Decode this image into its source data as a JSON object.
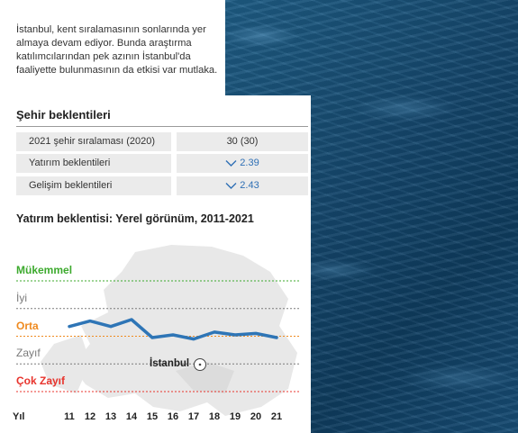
{
  "intro_text": "İstanbul, kent sıralamasının sonlarında yer almaya devam ediyor. Bunda araştırma katılımcılarından pek azının İstanbul'da faaliyette bulunmasının da etkisi var mutlaka.",
  "expectations": {
    "title": "Şehir beklentileri",
    "rows": [
      {
        "label": "2021 şehir sıralaması (2020)",
        "value": "30 (30)",
        "trend": "none"
      },
      {
        "label": "Yatırım beklentileri",
        "value": "2.39",
        "trend": "down"
      },
      {
        "label": "Gelişim beklentileri",
        "value": "2.43",
        "trend": "down"
      }
    ]
  },
  "chart_title": "Yatırım beklentisi: Yerel görünüm, 2011-2021",
  "colors": {
    "line": "#2e75b6",
    "accent_blue": "#2e6fb5",
    "mukemmel": "#3daa2e",
    "iyi": "#7a7a7a",
    "orta": "#ef8a1f",
    "zayif": "#7a7a7a",
    "cok_zayif": "#e8342d",
    "dotted": "#9a9a9a"
  },
  "chart_data": {
    "type": "line",
    "title": "Yatırım beklentisi: Yerel görünüm, 2011-2021",
    "x_label": "Yıl",
    "categories": [
      "11",
      "12",
      "13",
      "14",
      "15",
      "16",
      "17",
      "18",
      "19",
      "20",
      "21"
    ],
    "y_levels": [
      "Çok Zayıf",
      "Zayıf",
      "Orta",
      "İyi",
      "Mükemmel"
    ],
    "y_level_colors": [
      "#e8342d",
      "#7a7a7a",
      "#ef8a1f",
      "#7a7a7a",
      "#3daa2e"
    ],
    "ylim": [
      1,
      5
    ],
    "series": [
      {
        "values": [
          3.35,
          3.55,
          3.35,
          3.6,
          2.95,
          3.05,
          2.9,
          3.15,
          3.05,
          3.1,
          2.95
        ]
      }
    ],
    "annotation": "İstanbul",
    "background": "faded map of Europe"
  }
}
